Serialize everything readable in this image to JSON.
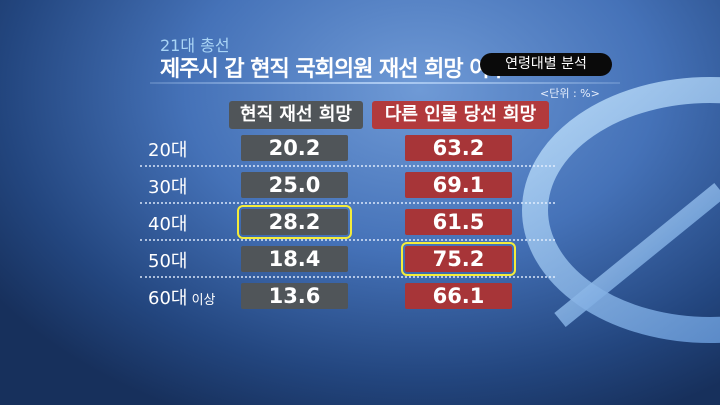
{
  "subtitle": "21대 총선",
  "title": "제주시 갑 현직 국회의원 재선 희망 여부",
  "badge": "연령대별 분석",
  "unit": "<단위 : %>",
  "chart_data": {
    "type": "table",
    "columns": [
      "현직 재선 희망",
      "다른 인물 당선 희망"
    ],
    "rows": [
      {
        "label": "20대",
        "suffix": "",
        "values": [
          "20.2",
          "63.2"
        ]
      },
      {
        "label": "30대",
        "suffix": "",
        "values": [
          "25.0",
          "69.1"
        ]
      },
      {
        "label": "40대",
        "suffix": "",
        "values": [
          "28.2",
          "61.5"
        ],
        "highlight": 0
      },
      {
        "label": "50대",
        "suffix": "",
        "values": [
          "18.4",
          "75.2"
        ],
        "highlight": 1
      },
      {
        "label": "60대",
        "suffix": " 이상",
        "values": [
          "13.6",
          "66.1"
        ]
      }
    ],
    "colors": {
      "incumbent": "#505559",
      "other": "#a73538",
      "highlight": "#f4ec3a"
    }
  }
}
